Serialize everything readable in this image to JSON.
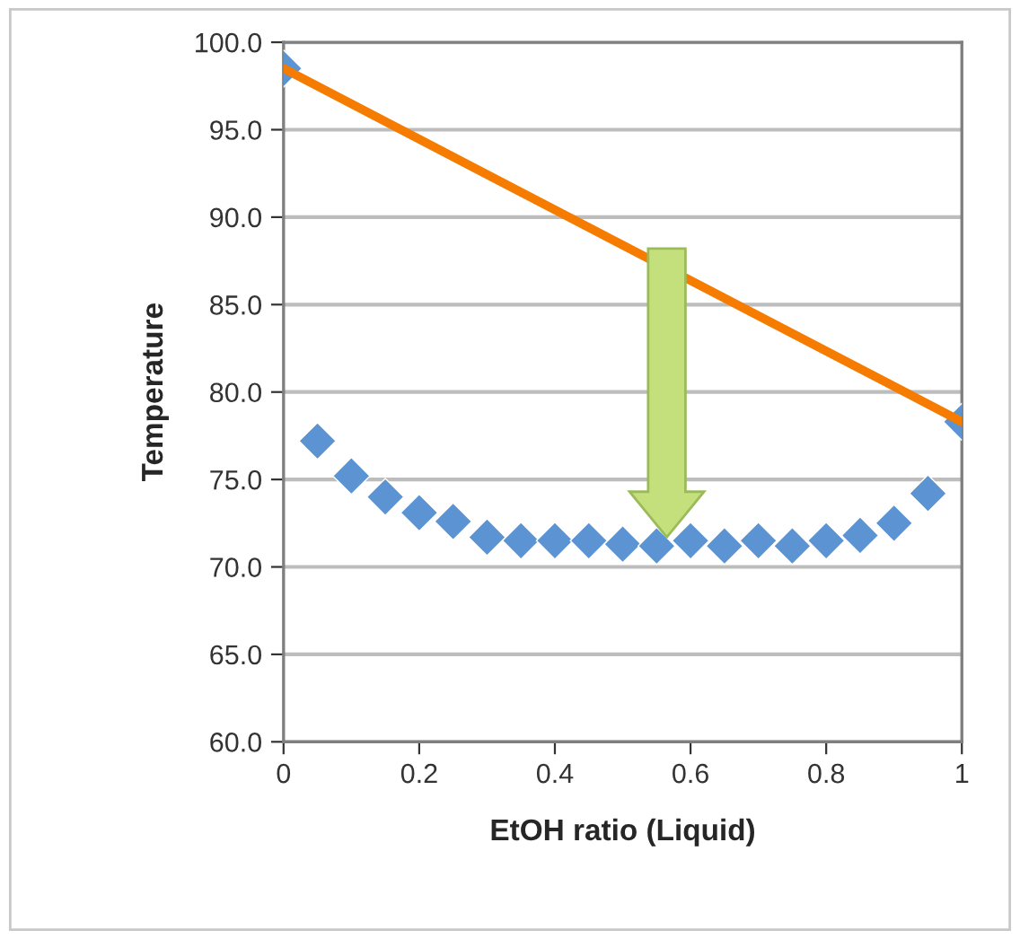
{
  "chart_data": {
    "type": "scatter",
    "xlabel": "EtOH ratio (Liquid)",
    "ylabel": "Temperature",
    "xlim": [
      0,
      1
    ],
    "ylim": [
      60,
      100
    ],
    "xticks": [
      0,
      0.2,
      0.4,
      0.6,
      0.8,
      1
    ],
    "yticks": [
      {
        "value": 60,
        "label": "60.0"
      },
      {
        "value": 65,
        "label": "65.0"
      },
      {
        "value": 70,
        "label": "70.0"
      },
      {
        "value": 75,
        "label": "75.0"
      },
      {
        "value": 80,
        "label": "80.0"
      },
      {
        "value": 85,
        "label": "85.0"
      },
      {
        "value": 90,
        "label": "90.0"
      },
      {
        "value": 95,
        "label": "95.0"
      },
      {
        "value": 100,
        "label": "100.0"
      }
    ],
    "grid": "y",
    "legend": false,
    "series": [
      {
        "marker": "diamond",
        "color": "#5b93d3",
        "x": [
          0,
          0.05,
          0.1,
          0.15,
          0.2,
          0.25,
          0.3,
          0.35,
          0.4,
          0.45,
          0.5,
          0.55,
          0.6,
          0.65,
          0.7,
          0.75,
          0.8,
          0.85,
          0.9,
          0.95,
          1
        ],
        "values": [
          98.5,
          77.2,
          75.2,
          74.0,
          73.1,
          72.6,
          71.7,
          71.5,
          71.5,
          71.5,
          71.3,
          71.2,
          71.5,
          71.2,
          71.5,
          71.2,
          71.5,
          71.8,
          72.5,
          74.2,
          78.3
        ]
      },
      {
        "type": "line",
        "marker": "none",
        "color": "#f57c00",
        "x": [
          0,
          1
        ],
        "values": [
          98.5,
          78.3
        ]
      }
    ]
  }
}
